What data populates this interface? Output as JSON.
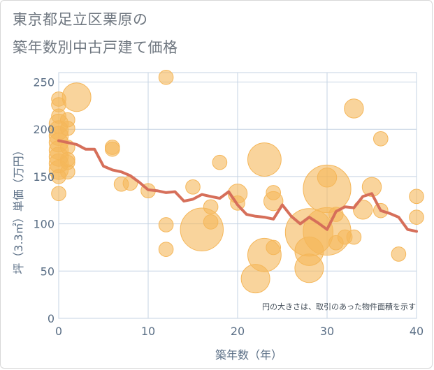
{
  "title_line1": "東京都足立区栗原の",
  "title_line2": "築年数別中古戸建て価格",
  "chart_data": {
    "type": "scatter",
    "title": "東京都足立区栗原の築年数別中古戸建て価格",
    "xlabel": "築年数（年）",
    "ylabel": "坪（3.3㎡）単価（万円）",
    "xlim": [
      0,
      40
    ],
    "ylim": [
      0,
      260
    ],
    "x_ticks": [
      0,
      10,
      20,
      30,
      40
    ],
    "y_ticks": [
      0,
      50,
      100,
      150,
      200,
      250
    ],
    "grid": true,
    "note": "円の大きさは、取引のあった物件面積を示す",
    "colors": {
      "bubble": "#f5b75a",
      "line": "#d66f5a",
      "grid": "#c5d3e3",
      "axis": "#5b6f86"
    },
    "bubbles": [
      {
        "x": 0,
        "y": 232,
        "s": 2
      },
      {
        "x": 0,
        "y": 226,
        "s": 2
      },
      {
        "x": 0,
        "y": 214,
        "s": 2
      },
      {
        "x": 0,
        "y": 206,
        "s": 3
      },
      {
        "x": 0,
        "y": 199,
        "s": 3
      },
      {
        "x": 0,
        "y": 193,
        "s": 3
      },
      {
        "x": 0,
        "y": 186,
        "s": 3
      },
      {
        "x": 0,
        "y": 178,
        "s": 3
      },
      {
        "x": 0,
        "y": 171,
        "s": 3
      },
      {
        "x": 0,
        "y": 164,
        "s": 3
      },
      {
        "x": 0,
        "y": 157,
        "s": 3
      },
      {
        "x": 0,
        "y": 150,
        "s": 2
      },
      {
        "x": 0,
        "y": 132,
        "s": 2
      },
      {
        "x": 1,
        "y": 210,
        "s": 2
      },
      {
        "x": 1,
        "y": 201,
        "s": 2
      },
      {
        "x": 1,
        "y": 181,
        "s": 2
      },
      {
        "x": 1,
        "y": 168,
        "s": 2
      },
      {
        "x": 1,
        "y": 165,
        "s": 2
      },
      {
        "x": 1,
        "y": 155,
        "s": 2
      },
      {
        "x": 2,
        "y": 234,
        "s": 5
      },
      {
        "x": 6,
        "y": 181,
        "s": 2
      },
      {
        "x": 6,
        "y": 179,
        "s": 2
      },
      {
        "x": 7,
        "y": 142,
        "s": 2
      },
      {
        "x": 8,
        "y": 143,
        "s": 2
      },
      {
        "x": 10,
        "y": 135,
        "s": 2
      },
      {
        "x": 12,
        "y": 255,
        "s": 2
      },
      {
        "x": 12,
        "y": 99,
        "s": 2
      },
      {
        "x": 12,
        "y": 73,
        "s": 2
      },
      {
        "x": 15,
        "y": 139,
        "s": 2
      },
      {
        "x": 16,
        "y": 94,
        "s": 8
      },
      {
        "x": 17,
        "y": 118,
        "s": 2
      },
      {
        "x": 17,
        "y": 102,
        "s": 2
      },
      {
        "x": 18,
        "y": 165,
        "s": 2
      },
      {
        "x": 20,
        "y": 132,
        "s": 3
      },
      {
        "x": 20,
        "y": 122,
        "s": 2
      },
      {
        "x": 22,
        "y": 42,
        "s": 5
      },
      {
        "x": 23,
        "y": 168,
        "s": 6
      },
      {
        "x": 23,
        "y": 67,
        "s": 6
      },
      {
        "x": 24,
        "y": 133,
        "s": 2
      },
      {
        "x": 24,
        "y": 124,
        "s": 3
      },
      {
        "x": 24,
        "y": 75,
        "s": 2
      },
      {
        "x": 28,
        "y": 91,
        "s": 9
      },
      {
        "x": 28,
        "y": 71,
        "s": 5
      },
      {
        "x": 28,
        "y": 53,
        "s": 5
      },
      {
        "x": 30,
        "y": 137,
        "s": 9
      },
      {
        "x": 30,
        "y": 149,
        "s": 3
      },
      {
        "x": 30,
        "y": 92,
        "s": 9
      },
      {
        "x": 31,
        "y": 80,
        "s": 2
      },
      {
        "x": 31,
        "y": 110,
        "s": 2
      },
      {
        "x": 32,
        "y": 86,
        "s": 2
      },
      {
        "x": 33,
        "y": 222,
        "s": 3
      },
      {
        "x": 33,
        "y": 86,
        "s": 2
      },
      {
        "x": 34,
        "y": 115,
        "s": 3
      },
      {
        "x": 35,
        "y": 139,
        "s": 3
      },
      {
        "x": 36,
        "y": 190,
        "s": 2
      },
      {
        "x": 36,
        "y": 114,
        "s": 2
      },
      {
        "x": 38,
        "y": 68,
        "s": 2
      },
      {
        "x": 40,
        "y": 129,
        "s": 2
      },
      {
        "x": 40,
        "y": 107,
        "s": 2
      }
    ],
    "line": {
      "x": [
        0,
        1,
        2,
        3,
        4,
        5,
        6,
        7,
        8,
        9,
        10,
        11,
        12,
        13,
        14,
        15,
        16,
        17,
        18,
        19,
        20,
        21,
        22,
        23,
        24,
        25,
        26,
        27,
        28,
        29,
        30,
        31,
        32,
        33,
        34,
        35,
        36,
        37,
        38,
        39,
        40
      ],
      "y": [
        188,
        186,
        184,
        179,
        179,
        161,
        157,
        155,
        151,
        144,
        136,
        135,
        133,
        134,
        124,
        126,
        131,
        129,
        127,
        134,
        120,
        110,
        108,
        107,
        105,
        120,
        108,
        100,
        107,
        101,
        94,
        113,
        118,
        117,
        129,
        132,
        114,
        111,
        107,
        94,
        92
      ]
    }
  }
}
